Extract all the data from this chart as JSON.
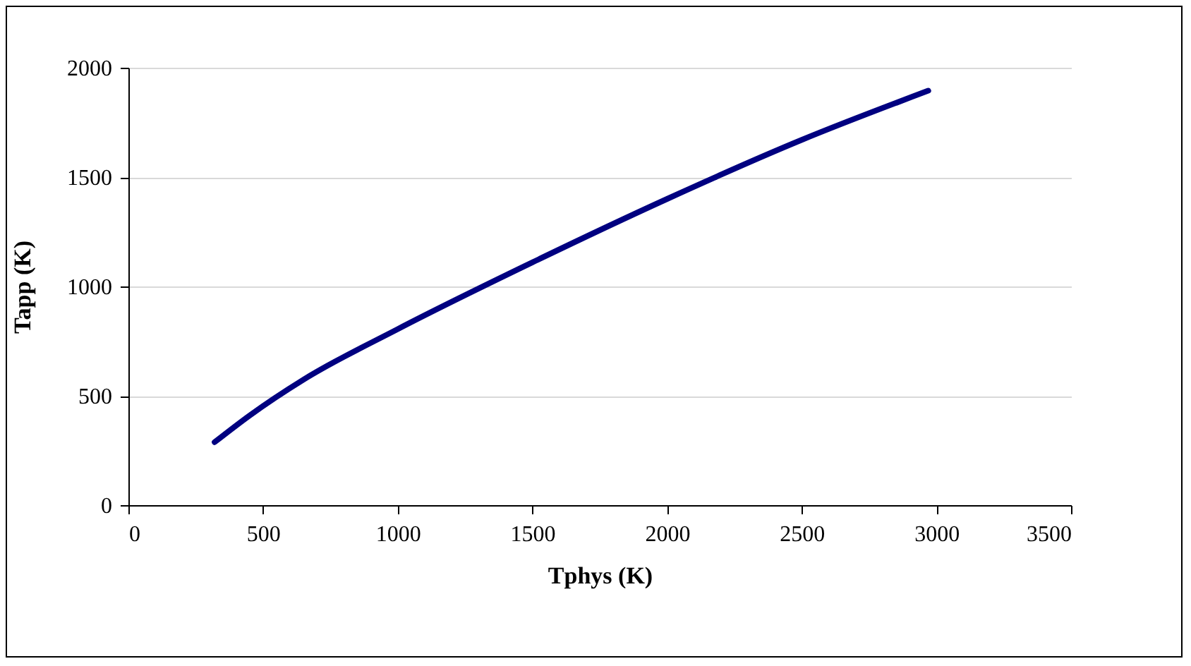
{
  "chart_data": {
    "type": "line",
    "xlabel": "Tphys (K)",
    "ylabel": "Tapp (K)",
    "x": [
      320,
      450,
      650,
      1000,
      1500,
      2000,
      2500,
      2970
    ],
    "series": [
      {
        "color": "#000080",
        "values": [
          288,
          410,
          574,
          805,
          1110,
          1400,
          1670,
          1895
        ]
      }
    ],
    "xlim": [
      0,
      3500
    ],
    "xticks": [
      0,
      500,
      1000,
      1500,
      2000,
      2500,
      3000,
      3500
    ],
    "ylim": [
      0,
      2000
    ],
    "yticks": [
      0,
      500,
      1000,
      1500,
      2000
    ],
    "grid": "y",
    "marker": "none",
    "line_style": "solid"
  }
}
